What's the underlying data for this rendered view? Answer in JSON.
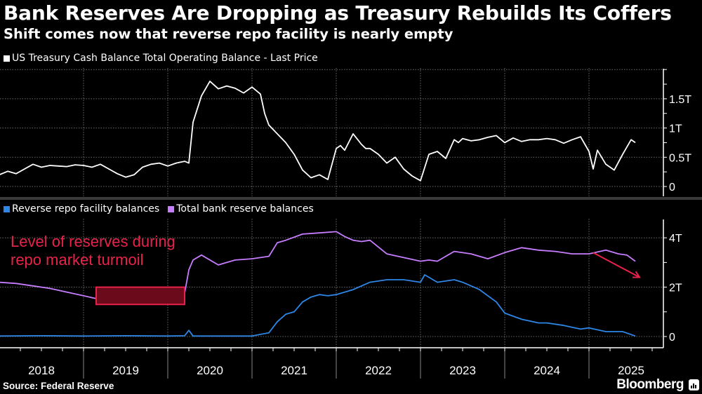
{
  "header": {
    "title": "Bank Reserves Are Dropping as Treasury Rebuilds Its Coffers",
    "subtitle": "Shift comes now that reverse repo facility is nearly empty"
  },
  "footer": {
    "source": "Source: Federal Reserve",
    "brand": "Bloomberg",
    "brand_icon": "bloomberg-chart-icon"
  },
  "colors": {
    "treasury": "#ffffff",
    "reverse_repo": "#2e86e6",
    "reserves": "#c77dff",
    "annotation": "#e8234a",
    "grid": "#6a6a6a"
  },
  "chart_data": [
    {
      "type": "line",
      "title": "US Treasury Cash Balance Total Operating Balance - Last Price",
      "legend": [
        "US Treasury Cash Balance Total Operating Balance - Last Price"
      ],
      "legend_position": "top-left",
      "ylabel": "",
      "xlabel": "",
      "ylim": [
        0,
        2.0
      ],
      "y_ticks": [
        0,
        0.5,
        1,
        1.5
      ],
      "y_tick_labels": [
        "0",
        "0.5T",
        "1T",
        "1.5T"
      ],
      "x_ticks": [
        "2018",
        "2019",
        "2020",
        "2021",
        "2022",
        "2023",
        "2024",
        "2025"
      ],
      "xlim": [
        2018.0,
        2025.85
      ],
      "grid": true,
      "series": [
        {
          "name": "US Treasury Cash Balance Total Operating Balance - Last Price",
          "x": [
            2018.0,
            2018.1,
            2018.2,
            2018.3,
            2018.4,
            2018.5,
            2018.6,
            2018.7,
            2018.8,
            2018.9,
            2019.0,
            2019.1,
            2019.2,
            2019.3,
            2019.4,
            2019.5,
            2019.6,
            2019.7,
            2019.8,
            2019.9,
            2020.0,
            2020.1,
            2020.2,
            2020.25,
            2020.3,
            2020.4,
            2020.5,
            2020.6,
            2020.7,
            2020.8,
            2020.9,
            2021.0,
            2021.1,
            2021.15,
            2021.2,
            2021.3,
            2021.4,
            2021.5,
            2021.6,
            2021.7,
            2021.8,
            2021.9,
            2022.0,
            2022.05,
            2022.1,
            2022.2,
            2022.3,
            2022.35,
            2022.4,
            2022.5,
            2022.6,
            2022.7,
            2022.8,
            2022.9,
            2023.0,
            2023.1,
            2023.2,
            2023.3,
            2023.4,
            2023.45,
            2023.5,
            2023.6,
            2023.7,
            2023.8,
            2023.9,
            2024.0,
            2024.1,
            2024.2,
            2024.3,
            2024.4,
            2024.5,
            2024.6,
            2024.7,
            2024.8,
            2024.9,
            2025.0,
            2025.05,
            2025.1,
            2025.2,
            2025.3,
            2025.4,
            2025.5,
            2025.55
          ],
          "values": [
            0.2,
            0.26,
            0.22,
            0.3,
            0.38,
            0.33,
            0.36,
            0.35,
            0.34,
            0.37,
            0.36,
            0.33,
            0.38,
            0.3,
            0.22,
            0.16,
            0.2,
            0.33,
            0.38,
            0.4,
            0.35,
            0.4,
            0.43,
            0.4,
            1.1,
            1.55,
            1.8,
            1.67,
            1.72,
            1.68,
            1.6,
            1.7,
            1.58,
            1.25,
            1.05,
            0.9,
            0.75,
            0.55,
            0.28,
            0.15,
            0.2,
            0.12,
            0.65,
            0.7,
            0.62,
            0.9,
            0.72,
            0.65,
            0.65,
            0.55,
            0.4,
            0.5,
            0.3,
            0.18,
            0.1,
            0.55,
            0.6,
            0.48,
            0.8,
            0.75,
            0.82,
            0.78,
            0.8,
            0.84,
            0.87,
            0.75,
            0.83,
            0.77,
            0.8,
            0.8,
            0.82,
            0.8,
            0.74,
            0.8,
            0.85,
            0.6,
            0.3,
            0.62,
            0.38,
            0.28,
            0.55,
            0.8,
            0.75
          ]
        }
      ]
    },
    {
      "type": "line",
      "title": "",
      "legend": [
        "Reverse repo facility balances",
        "Total bank reserve balances"
      ],
      "legend_position": "top-left",
      "ylim": [
        0,
        4.6
      ],
      "y_ticks": [
        0,
        2,
        4
      ],
      "y_tick_labels": [
        "0",
        "2T",
        "4T"
      ],
      "x_ticks": [
        "2018",
        "2019",
        "2020",
        "2021",
        "2022",
        "2023",
        "2024",
        "2025"
      ],
      "xlim": [
        2018.0,
        2025.85
      ],
      "grid": true,
      "annotations": [
        {
          "text_lines": [
            "Level of reserves during",
            "repo market turmoil"
          ],
          "highlight_x_range": [
            2019.15,
            2020.2
          ],
          "highlight_y_range": [
            1.3,
            2.0
          ]
        },
        {
          "type": "arrow",
          "direction": "down-right",
          "from": [
            2025.05,
            3.4
          ],
          "to": [
            2025.6,
            2.4
          ]
        }
      ],
      "series": [
        {
          "name": "Reverse repo facility balances",
          "x": [
            2018.0,
            2018.5,
            2019.0,
            2019.5,
            2020.0,
            2020.2,
            2020.25,
            2020.3,
            2021.0,
            2021.2,
            2021.3,
            2021.4,
            2021.5,
            2021.6,
            2021.7,
            2021.8,
            2021.9,
            2022.0,
            2022.2,
            2022.4,
            2022.6,
            2022.8,
            2023.0,
            2023.05,
            2023.2,
            2023.4,
            2023.5,
            2023.7,
            2023.9,
            2024.0,
            2024.2,
            2024.4,
            2024.5,
            2024.7,
            2024.9,
            2025.0,
            2025.2,
            2025.4,
            2025.55
          ],
          "values": [
            0.02,
            0.03,
            0.02,
            0.03,
            0.02,
            0.03,
            0.25,
            0.02,
            0.02,
            0.15,
            0.6,
            0.9,
            1.0,
            1.4,
            1.6,
            1.7,
            1.65,
            1.7,
            1.9,
            2.2,
            2.3,
            2.3,
            2.2,
            2.5,
            2.2,
            2.3,
            2.2,
            1.9,
            1.4,
            0.95,
            0.7,
            0.55,
            0.55,
            0.45,
            0.3,
            0.35,
            0.2,
            0.2,
            0.02
          ]
        },
        {
          "name": "Total bank reserve balances",
          "x": [
            2018.0,
            2018.2,
            2018.4,
            2018.6,
            2018.8,
            2019.0,
            2019.2,
            2019.4,
            2019.6,
            2019.8,
            2020.0,
            2020.2,
            2020.25,
            2020.3,
            2020.4,
            2020.6,
            2020.8,
            2021.0,
            2021.2,
            2021.3,
            2021.4,
            2021.6,
            2021.8,
            2022.0,
            2022.1,
            2022.2,
            2022.3,
            2022.4,
            2022.6,
            2022.8,
            2023.0,
            2023.1,
            2023.2,
            2023.4,
            2023.6,
            2023.8,
            2024.0,
            2024.2,
            2024.4,
            2024.6,
            2024.8,
            2025.0,
            2025.2,
            2025.35,
            2025.45,
            2025.55
          ],
          "values": [
            2.2,
            2.15,
            2.05,
            1.95,
            1.8,
            1.65,
            1.5,
            1.45,
            1.5,
            1.5,
            1.7,
            1.75,
            2.7,
            3.1,
            3.3,
            2.9,
            3.1,
            3.15,
            3.25,
            3.8,
            3.9,
            4.15,
            4.2,
            4.25,
            4.05,
            3.9,
            3.85,
            3.9,
            3.35,
            3.2,
            3.05,
            3.1,
            3.05,
            3.45,
            3.35,
            3.15,
            3.4,
            3.6,
            3.5,
            3.45,
            3.35,
            3.35,
            3.5,
            3.35,
            3.3,
            3.05
          ]
        }
      ]
    }
  ]
}
